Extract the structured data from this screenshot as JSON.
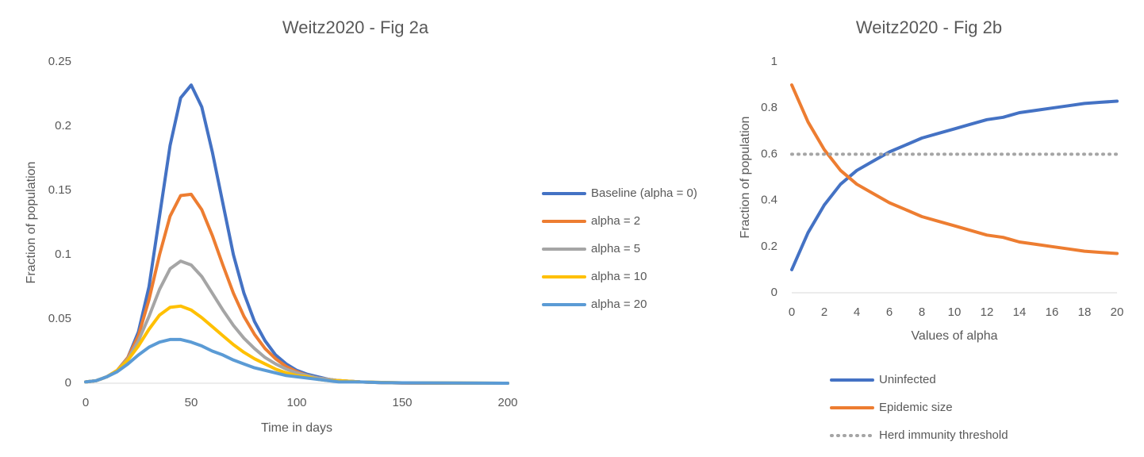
{
  "chart_data": [
    {
      "type": "line",
      "title": "Weitz2020 - Fig 2a",
      "xlabel": "Time in days",
      "ylabel": "Fraction of population",
      "x": [
        0,
        5,
        10,
        15,
        20,
        25,
        30,
        35,
        40,
        45,
        50,
        55,
        60,
        65,
        70,
        75,
        80,
        85,
        90,
        95,
        100,
        105,
        110,
        115,
        120,
        130,
        140,
        150,
        175,
        200
      ],
      "xlim": [
        0,
        200
      ],
      "xticks": [
        0,
        50,
        100,
        150,
        200
      ],
      "ylim": [
        0,
        0.25
      ],
      "yticks": [
        0,
        0.05,
        0.1,
        0.15,
        0.2,
        0.25
      ],
      "legend": "right",
      "series": [
        {
          "name": "Baseline (alpha = 0)",
          "color": "#4472c4",
          "values": [
            0.001,
            0.002,
            0.005,
            0.01,
            0.02,
            0.04,
            0.075,
            0.13,
            0.185,
            0.222,
            0.232,
            0.215,
            0.18,
            0.14,
            0.1,
            0.07,
            0.048,
            0.033,
            0.022,
            0.015,
            0.01,
            0.007,
            0.005,
            0.003,
            0.002,
            0.001,
            0.0005,
            0.0002,
            0,
            0
          ]
        },
        {
          "name": "alpha = 2",
          "color": "#ed7d31",
          "values": [
            0.001,
            0.002,
            0.005,
            0.01,
            0.02,
            0.037,
            0.065,
            0.1,
            0.13,
            0.146,
            0.147,
            0.135,
            0.115,
            0.092,
            0.07,
            0.052,
            0.038,
            0.027,
            0.019,
            0.013,
            0.009,
            0.006,
            0.004,
            0.003,
            0.002,
            0.001,
            0.0005,
            0.0002,
            0,
            0
          ]
        },
        {
          "name": "alpha = 5",
          "color": "#a5a5a5",
          "values": [
            0.001,
            0.002,
            0.005,
            0.01,
            0.019,
            0.033,
            0.052,
            0.073,
            0.089,
            0.095,
            0.092,
            0.083,
            0.07,
            0.057,
            0.045,
            0.035,
            0.027,
            0.02,
            0.015,
            0.011,
            0.008,
            0.006,
            0.004,
            0.003,
            0.002,
            0.001,
            0.0006,
            0.0003,
            0.0001,
            0
          ]
        },
        {
          "name": "alpha = 10",
          "color": "#ffc000",
          "values": [
            0.001,
            0.002,
            0.005,
            0.01,
            0.018,
            0.029,
            0.042,
            0.053,
            0.059,
            0.06,
            0.057,
            0.051,
            0.044,
            0.037,
            0.03,
            0.024,
            0.019,
            0.015,
            0.011,
            0.008,
            0.006,
            0.005,
            0.003,
            0.002,
            0.002,
            0.001,
            0.0006,
            0.0003,
            0.0001,
            0
          ]
        },
        {
          "name": "alpha = 20",
          "color": "#5b9bd5",
          "values": [
            0.001,
            0.002,
            0.005,
            0.009,
            0.015,
            0.022,
            0.028,
            0.032,
            0.034,
            0.034,
            0.032,
            0.029,
            0.025,
            0.022,
            0.018,
            0.015,
            0.012,
            0.01,
            0.008,
            0.006,
            0.005,
            0.004,
            0.003,
            0.002,
            0.001,
            0.001,
            0.0005,
            0.0003,
            0.0001,
            0
          ]
        }
      ]
    },
    {
      "type": "line",
      "title": "Weitz2020 - Fig 2b",
      "xlabel": "Values of alpha",
      "ylabel": "Fraction of population",
      "x": [
        0,
        1,
        2,
        3,
        4,
        5,
        6,
        7,
        8,
        9,
        10,
        11,
        12,
        13,
        14,
        15,
        16,
        17,
        18,
        19,
        20
      ],
      "xlim": [
        0,
        20
      ],
      "xticks": [
        0,
        2,
        4,
        6,
        8,
        10,
        12,
        14,
        16,
        18,
        20
      ],
      "ylim": [
        0,
        1
      ],
      "yticks": [
        0,
        0.2,
        0.4,
        0.6,
        0.8,
        1
      ],
      "legend": "bottom",
      "series": [
        {
          "name": "Uninfected",
          "color": "#4472c4",
          "values": [
            0.1,
            0.26,
            0.38,
            0.47,
            0.53,
            0.57,
            0.61,
            0.64,
            0.67,
            0.69,
            0.71,
            0.73,
            0.75,
            0.76,
            0.78,
            0.79,
            0.8,
            0.81,
            0.82,
            0.825,
            0.83
          ]
        },
        {
          "name": "Epidemic size",
          "color": "#ed7d31",
          "values": [
            0.9,
            0.74,
            0.62,
            0.53,
            0.47,
            0.43,
            0.39,
            0.36,
            0.33,
            0.31,
            0.29,
            0.27,
            0.25,
            0.24,
            0.22,
            0.21,
            0.2,
            0.19,
            0.18,
            0.175,
            0.17
          ]
        },
        {
          "name": "Herd immunity threshold",
          "color": "#a5a5a5",
          "dash": "dotted",
          "values": [
            0.6,
            0.6,
            0.6,
            0.6,
            0.6,
            0.6,
            0.6,
            0.6,
            0.6,
            0.6,
            0.6,
            0.6,
            0.6,
            0.6,
            0.6,
            0.6,
            0.6,
            0.6,
            0.6,
            0.6,
            0.6
          ]
        }
      ]
    }
  ]
}
